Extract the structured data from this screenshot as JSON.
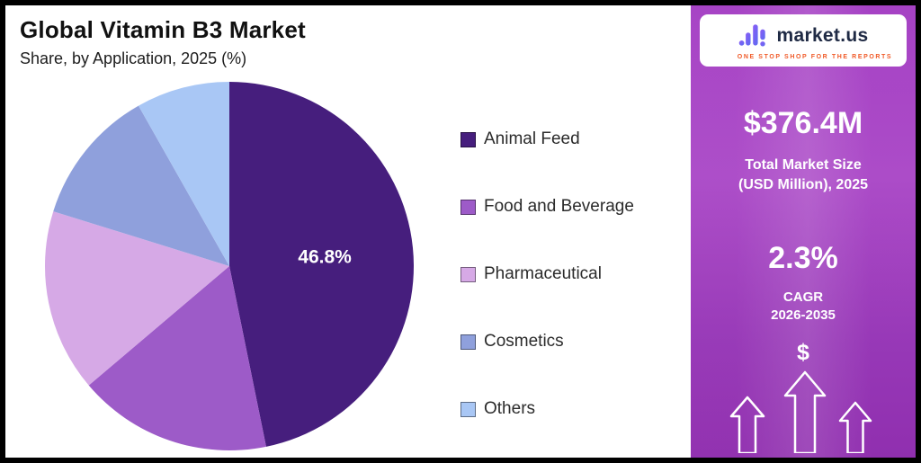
{
  "header": {
    "title": "Global Vitamin B3 Market",
    "subtitle": "Share, by Application, 2025 (%)"
  },
  "chart_data": {
    "type": "pie",
    "title": "Global Vitamin B3 Market",
    "subtitle": "Share, by Application, 2025 (%)",
    "unit": "percent share",
    "start_angle_deg": 0,
    "direction": "clockwise",
    "legend_position": "right",
    "slices": [
      {
        "label": "Animal Feed",
        "value": 46.8,
        "color": "#461E7D",
        "data_label": "46.8%"
      },
      {
        "label": "Food and Beverage",
        "value": 17.0,
        "color": "#9D5BC8"
      },
      {
        "label": "Pharmaceutical",
        "value": 16.0,
        "color": "#D6A9E6"
      },
      {
        "label": "Cosmetics",
        "value": 12.0,
        "color": "#8FA0DC"
      },
      {
        "label": "Others",
        "value": 8.2,
        "color": "#A9C7F5"
      }
    ]
  },
  "sidebar": {
    "logo": {
      "brand": "market.us",
      "tagline": "ONE STOP SHOP FOR THE REPORTS",
      "tagline_color": "#F05A28"
    },
    "market_size": {
      "value": "$376.4M",
      "label_line1": "Total Market Size",
      "label_line2": "(USD Million), 2025"
    },
    "cagr": {
      "value": "2.3%",
      "label_line1": "CAGR",
      "label_line2": "2026-2035"
    },
    "dollar_symbol": "$",
    "colors": {
      "panel_top": "#A23AC2",
      "panel_bottom": "#8C27AC",
      "text": "#FFFFFF"
    }
  }
}
